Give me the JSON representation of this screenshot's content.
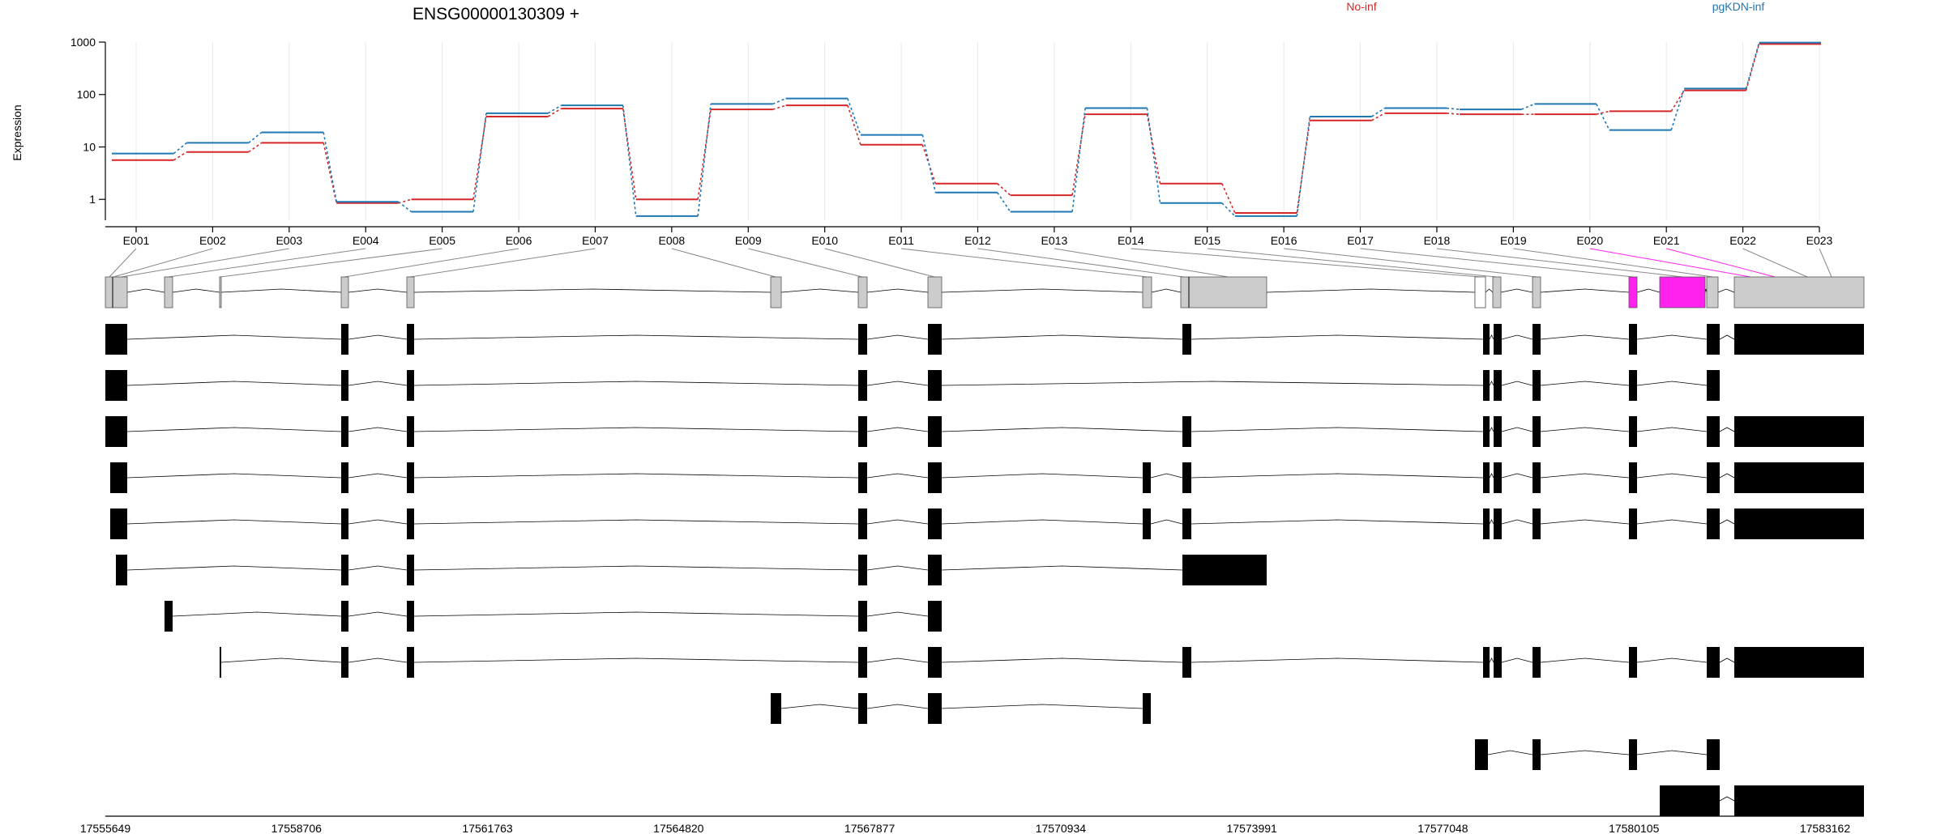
{
  "title": "ENSG00000130309 +",
  "chart_data": {
    "type": "line",
    "ylabel": "Expression",
    "yscale": "log",
    "ylim": [
      0.4,
      1000
    ],
    "y_ticks": [
      "1",
      "10",
      "100",
      "1000"
    ],
    "categories": [
      "E001",
      "E002",
      "E003",
      "E004",
      "E005",
      "E006",
      "E007",
      "E008",
      "E009",
      "E010",
      "E011",
      "E012",
      "E013",
      "E014",
      "E015",
      "E016",
      "E017",
      "E018",
      "E019",
      "E020",
      "E021",
      "E022",
      "E023"
    ],
    "legend_position": "top",
    "series": [
      {
        "name": "No-inf",
        "color": "#d62728",
        "values": [
          5.6,
          8,
          12,
          0.85,
          1,
          38,
          54,
          1,
          52,
          62,
          11,
          2,
          1.2,
          42,
          2,
          0.55,
          32,
          44,
          42,
          42,
          48,
          120,
          920
        ]
      },
      {
        "name": "pgKDN-inf",
        "color": "#1f77b4",
        "values": [
          7.5,
          12,
          19,
          0.9,
          0.58,
          44,
          62,
          0.48,
          66,
          84,
          17,
          1.35,
          0.58,
          55,
          0.85,
          0.48,
          38,
          55,
          52,
          66,
          21,
          130,
          980
        ]
      }
    ]
  },
  "gene_model": {
    "highlight_color": "#ff22ee",
    "highlighted_exons": [
      "E020",
      "E021"
    ],
    "coordinate_ticks": [
      "17555649",
      "17558706",
      "17561763",
      "17564820",
      "17567877",
      "17570934",
      "17573991",
      "17577048",
      "17580105",
      "17583162"
    ]
  }
}
